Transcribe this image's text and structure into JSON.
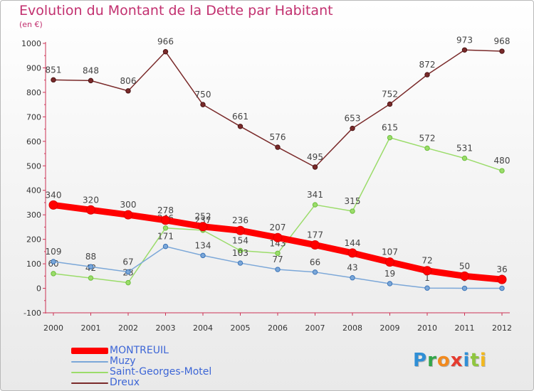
{
  "title": "Evolution du Montant de la Dette par Habitant",
  "unit": "(en €)",
  "logo": {
    "letters": [
      {
        "ch": "P",
        "color": "#2f8fd6"
      },
      {
        "ch": "r",
        "color": "#33a64a"
      },
      {
        "ch": "o",
        "color": "#f28a1e"
      },
      {
        "ch": "x",
        "color": "#e53b2f"
      },
      {
        "ch": "i",
        "color": "#2f8fd6"
      },
      {
        "ch": "t",
        "color": "#8fc63e"
      },
      {
        "ch": "i",
        "color": "#f2b81e"
      }
    ]
  },
  "chart_data": {
    "type": "line",
    "title": "Evolution du Montant de la Dette par Habitant",
    "ylabel": "(en €)",
    "xlabel": "",
    "x": [
      "2000",
      "2001",
      "2002",
      "2003",
      "2004",
      "2005",
      "2006",
      "2007",
      "2008",
      "2009",
      "2010",
      "2011",
      "2012"
    ],
    "ylim": [
      -100,
      1000
    ],
    "yticks": [
      "-100",
      "0",
      "100",
      "200",
      "300",
      "400",
      "500",
      "600",
      "700",
      "800",
      "900",
      "1000"
    ],
    "grid": false,
    "legend": "bottom-left",
    "series": [
      {
        "name": "MONTREUIL",
        "color": "#ff0000",
        "values": [
          340,
          320,
          300,
          278,
          252,
          236,
          207,
          177,
          144,
          107,
          72,
          50,
          36
        ],
        "labels": [
          "340",
          "320",
          "300",
          "278",
          "252",
          "236",
          "207",
          "177",
          "144",
          "107",
          "72",
          "50",
          "36"
        ]
      },
      {
        "name": "Muzy",
        "color": "#7ba7d8",
        "values": [
          109,
          88,
          67,
          171,
          134,
          103,
          77,
          66,
          43,
          19,
          1,
          0,
          0
        ],
        "labels": [
          "109",
          "88",
          "67",
          "171",
          "134",
          "103",
          "77",
          "66",
          "43",
          "19",
          "1",
          "0",
          "0"
        ]
      },
      {
        "name": "Saint-Georges-Motel",
        "color": "#9bdc6a",
        "values": [
          60,
          42,
          23,
          246,
          237,
          154,
          143,
          341,
          315,
          615,
          572,
          531,
          480
        ],
        "labels": [
          "60",
          "42",
          "23",
          "246",
          "237",
          "154",
          "143",
          "341",
          "315",
          "615",
          "572",
          "531",
          "480"
        ]
      },
      {
        "name": "Dreux",
        "color": "#7a2a2a",
        "values": [
          851,
          848,
          806,
          966,
          750,
          661,
          576,
          495,
          653,
          752,
          872,
          973,
          968
        ],
        "labels": [
          "851",
          "848",
          "806",
          "966",
          "750",
          "661",
          "576",
          "495",
          "653",
          "752",
          "872",
          "973",
          "968"
        ]
      }
    ]
  }
}
